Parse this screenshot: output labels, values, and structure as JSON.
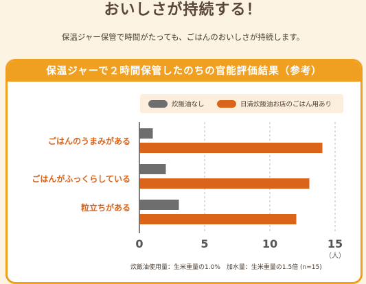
{
  "header": {
    "headline": "おいしさが持続する！",
    "subline": "保温ジャー保管で時間がたっても、ごはんのおいしさが持続します。"
  },
  "card": {
    "title": "保温ジャーで２時間保管したのちの官能評価結果（参考）",
    "footnote": "炊飯油使用量：生米重量の1.0%　加水量：生米重量の1.5倍 (n=15)"
  },
  "colors": {
    "accent": "#f0a020",
    "series_a": "#6e6e6e",
    "series_b": "#d9641a",
    "label": "#d9641a"
  },
  "chart_data": {
    "type": "bar",
    "orientation": "horizontal",
    "categories": [
      "ごはんのうまみがある",
      "ごはんがふっくらしている",
      "粒立ちがある"
    ],
    "series": [
      {
        "name": "炊飯油なし",
        "values": [
          1,
          2,
          3
        ]
      },
      {
        "name": "日清炊飯油お店のごはん用あり",
        "values": [
          14,
          13,
          12
        ]
      }
    ],
    "xlim": [
      0,
      15
    ],
    "xticks": [
      0,
      5,
      10,
      15
    ],
    "xunit": "（人）",
    "grid": true,
    "legend": "top"
  }
}
